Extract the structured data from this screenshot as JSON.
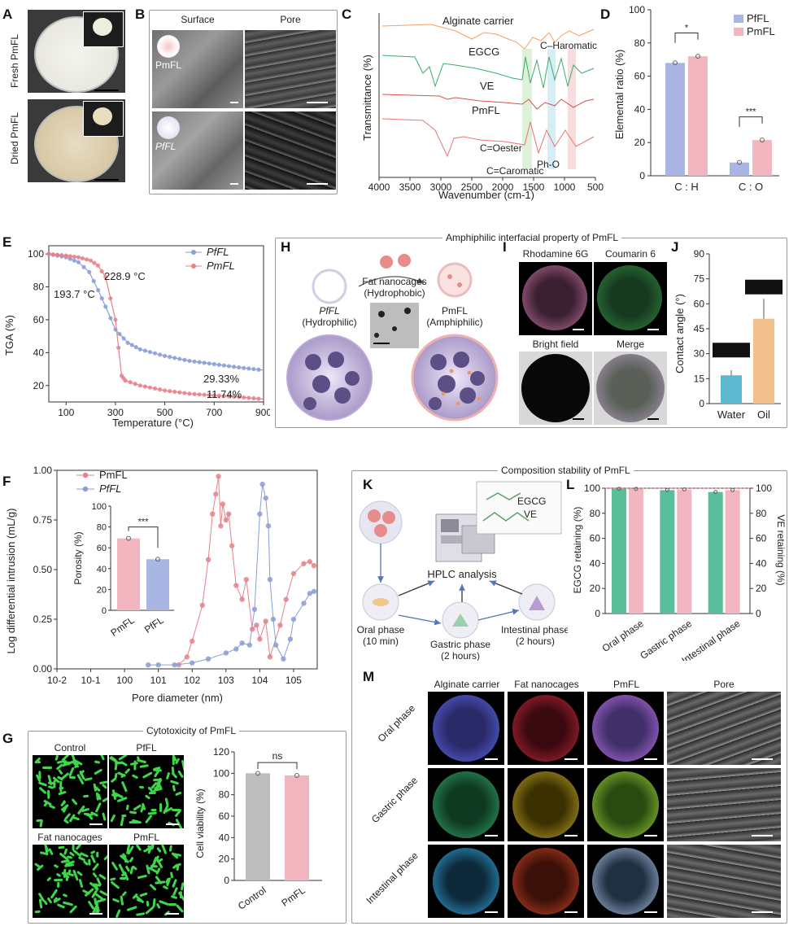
{
  "panels": {
    "A": {
      "label": "A",
      "row1": "Fresh PmFL",
      "row2": "Dried PmFL"
    },
    "B": {
      "label": "B",
      "col1": "Surface",
      "col2": "Pore",
      "row1": "PmFL",
      "row2": "PfFL"
    },
    "C": {
      "label": "C"
    },
    "D": {
      "label": "D"
    },
    "E": {
      "label": "E"
    },
    "H": {
      "label": "H",
      "title": "Amphiphilic interfacial property of PmFL",
      "left_name": "PfFL",
      "left_sub": "(Hydrophilic)",
      "mid_name": "Fat nanocages",
      "mid_sub": "(Hydrophobic)",
      "right_name": "PmFL",
      "right_sub": "(Amphiphilic)"
    },
    "I": {
      "label": "I",
      "tl": "Rhodamine 6G",
      "tr": "Coumarin 6",
      "bl": "Bright field",
      "br": "Merge"
    },
    "J": {
      "label": "J"
    },
    "F": {
      "label": "F"
    },
    "K": {
      "label": "K",
      "title": "Composition stability of PmFL",
      "egcg": "EGCG",
      "ve": "VE",
      "hplc": "HPLC analysis",
      "oral": "Oral phase",
      "oral_t": "(10 min)",
      "gastric": "Gastric phase",
      "gastric_t": "(2 hours)",
      "intestinal": "Intestinal phase",
      "intestinal_t": "(2 hours)"
    },
    "L": {
      "label": "L"
    },
    "G": {
      "label": "G",
      "title": "Cytotoxicity of PmFL",
      "img1": "Control",
      "img2": "PfFL",
      "img3": "Fat nanocages",
      "img4": "PmFL"
    },
    "M": {
      "label": "M",
      "cols": [
        "Alginate carrier",
        "Fat nanocages",
        "PmFL",
        "Pore"
      ],
      "rows": [
        "Oral phase",
        "Gastric phase",
        "Intestinal phase"
      ]
    }
  },
  "colors": {
    "pmfl": "#e8808a",
    "pffl": "#8a9ed6",
    "pmfl_bar": "#f2b6c0",
    "pffl_bar": "#a9b6e3",
    "green_bar": "#5bbf9b",
    "water": "#5cb8cf",
    "oil": "#f1c08c",
    "grey_bar": "#bdbdbd"
  },
  "chart_data": [
    {
      "id": "C",
      "type": "line",
      "xlabel": "Wavenumber (cm-1)",
      "ylabel": "Transmittance (%)",
      "xlim": [
        4000,
        500
      ],
      "xticks": [
        4000,
        3500,
        3000,
        2500,
        2000,
        1500,
        1000,
        500
      ],
      "series": [
        {
          "name": "Alginate carrier"
        },
        {
          "name": "EGCG"
        },
        {
          "name": "VE"
        },
        {
          "name": "PmFL"
        }
      ],
      "annotations": [
        "C–Haromatic",
        "C=Oester",
        "Ph-O",
        "C=Caromatic"
      ]
    },
    {
      "id": "D",
      "type": "bar",
      "categories": [
        "C : H",
        "C : O"
      ],
      "series": [
        {
          "name": "PfFL",
          "values": [
            68,
            8
          ]
        },
        {
          "name": "PmFL",
          "values": [
            72,
            21.5
          ]
        }
      ],
      "ylabel": "Elemental ratio (%)",
      "ylim": [
        0,
        100
      ],
      "yticks": [
        0,
        20,
        40,
        60,
        80,
        100
      ],
      "significance": [
        "*",
        "***"
      ],
      "legend": "top-right"
    },
    {
      "id": "E",
      "type": "line",
      "xlabel": "Temperature (°C)",
      "ylabel": "TGA (%)",
      "xlim": [
        30,
        900
      ],
      "ylim": [
        10,
        105
      ],
      "xticks": [
        100,
        300,
        500,
        700,
        900
      ],
      "yticks": [
        20,
        40,
        60,
        80,
        100
      ],
      "series": [
        {
          "name": "PfFL",
          "x": [
            30,
            100,
            150,
            194,
            230,
            260,
            300,
            350,
            400,
            500,
            600,
            700,
            800,
            900
          ],
          "y": [
            100,
            98,
            95,
            89,
            78,
            68,
            54,
            46,
            42,
            38,
            35,
            33,
            31,
            29.33
          ]
        },
        {
          "name": "PmFL",
          "x": [
            30,
            100,
            150,
            200,
            229,
            260,
            300,
            325,
            340,
            400,
            500,
            600,
            700,
            800,
            900
          ],
          "y": [
            100,
            99,
            98,
            96,
            93,
            86,
            60,
            26,
            23,
            20,
            17,
            15,
            14,
            13,
            11.74
          ]
        }
      ],
      "annotations": [
        "193.7 °C",
        "228.9 °C",
        "29.33%",
        "11.74%"
      ],
      "legend": "top-right"
    },
    {
      "id": "F",
      "type": "line",
      "xlabel": "Pore diameter (nm)",
      "ylabel": "Log differential intrusion (mL/g)",
      "xscale": "log",
      "xlim": [
        0.01,
        500000
      ],
      "ylim": [
        0,
        1.0
      ],
      "yticks": [
        0.0,
        0.25,
        0.5,
        0.75,
        1.0
      ],
      "xticklabels": [
        "10-2",
        "10-1",
        "100",
        "101",
        "102",
        "103",
        "104",
        "105"
      ],
      "series": [
        {
          "name": "PmFL",
          "x": [
            40,
            70,
            100,
            200,
            300,
            400,
            500,
            600,
            700,
            800,
            1000,
            1200,
            1500,
            2000,
            3000,
            4000,
            6000,
            8000,
            10000,
            15000,
            20000,
            40000,
            60000,
            100000,
            200000,
            300000,
            400000
          ],
          "y": [
            0.02,
            0.06,
            0.14,
            0.32,
            0.55,
            0.78,
            0.88,
            0.97,
            0.72,
            0.83,
            0.75,
            0.78,
            0.62,
            0.42,
            0.35,
            0.45,
            0.2,
            0.22,
            0.15,
            0.24,
            0.06,
            0.22,
            0.35,
            0.48,
            0.53,
            0.54,
            0.52
          ]
        },
        {
          "name": "PfFL",
          "x": [
            5,
            10,
            30,
            100,
            300,
            1000,
            2000,
            3000,
            5000,
            7000,
            10000,
            12000,
            15000,
            18000,
            20000,
            25000,
            30000,
            50000,
            80000,
            100000,
            200000,
            300000,
            400000
          ],
          "y": [
            0.02,
            0.02,
            0.02,
            0.03,
            0.05,
            0.08,
            0.1,
            0.13,
            0.12,
            0.3,
            0.78,
            0.93,
            0.86,
            0.72,
            0.45,
            0.25,
            0.12,
            0.05,
            0.15,
            0.25,
            0.33,
            0.38,
            0.39
          ]
        }
      ],
      "legend": "top-left"
    },
    {
      "id": "F-inset",
      "type": "bar",
      "categories": [
        "PmFL",
        "PfFL"
      ],
      "values": [
        69,
        49
      ],
      "ylabel": "Porosity (%)",
      "ylim": [
        0,
        100
      ],
      "yticks": [
        0,
        20,
        40,
        60,
        80,
        100
      ],
      "significance": "***"
    },
    {
      "id": "J",
      "type": "bar",
      "categories": [
        "Water",
        "Oil"
      ],
      "values": [
        17,
        51
      ],
      "ylabel": "Contact angle (°)",
      "ylim": [
        0,
        90
      ],
      "yticks": [
        0,
        15,
        30,
        45,
        60,
        75,
        90
      ]
    },
    {
      "id": "L",
      "type": "bar",
      "categories": [
        "Oral phase",
        "Gastric phase",
        "Intestinal phase"
      ],
      "series": [
        {
          "name": "EGCG",
          "values": [
            99.5,
            98.5,
            97
          ]
        },
        {
          "name": "VE",
          "values": [
            99.5,
            99,
            98.5
          ]
        }
      ],
      "ylabel": "EGCG retaining (%)",
      "y2label": "VE retaining (%)",
      "ylim": [
        0,
        100
      ],
      "yticks": [
        0,
        20,
        40,
        60,
        80,
        100
      ]
    },
    {
      "id": "G",
      "type": "bar",
      "categories": [
        "Control",
        "PmFL"
      ],
      "values": [
        100,
        98
      ],
      "ylabel": "Cell viability (%)",
      "ylim": [
        0,
        120
      ],
      "yticks": [
        0,
        20,
        40,
        60,
        80,
        100,
        120
      ],
      "significance": "ns"
    }
  ]
}
